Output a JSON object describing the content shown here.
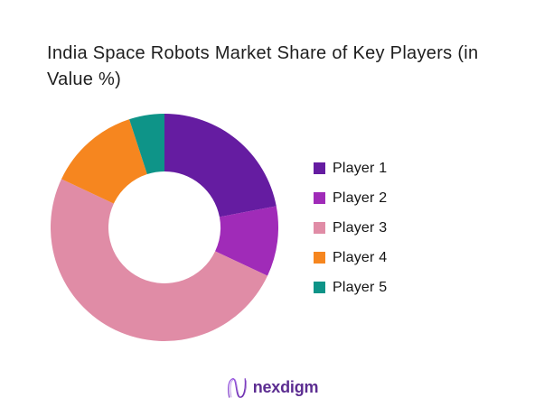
{
  "title": {
    "lines": [
      "India Space Robots Market Share of Key Players (in",
      "Value %)"
    ]
  },
  "chart_data": {
    "type": "pie",
    "subtype": "donut",
    "title": "India Space Robots Market Share of Key Players (in Value %)",
    "categories": [
      "Player 1",
      "Player 2",
      "Player 3",
      "Player 4",
      "Player 5"
    ],
    "values": [
      22,
      10,
      50,
      13,
      5
    ],
    "unit": "percent of market value",
    "colors": [
      "#651ca1",
      "#a02bb8",
      "#e08ca6",
      "#f6861f",
      "#0e9488"
    ],
    "start_angle_deg": 0,
    "direction": "clockwise",
    "inner_radius_ratio": 0.49,
    "legend_position": "right",
    "data_labels": "none"
  },
  "footer": {
    "logo_text": "nexdigm",
    "logo_color": "#5c2d91",
    "logo_mark_gradient": [
      "#9d5ce6",
      "#6323a6"
    ]
  }
}
